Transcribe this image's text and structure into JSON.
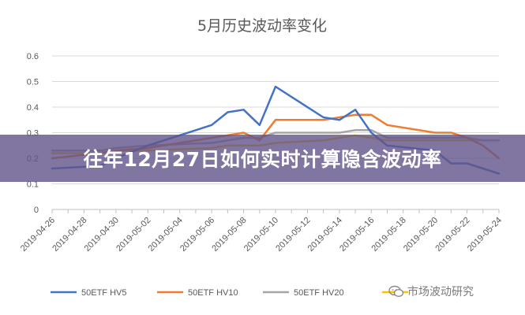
{
  "banner": {
    "text": "往年12月27日如何实时计算隐含波动率"
  },
  "watermark": {
    "text": "市场波动研究"
  },
  "chart_data": {
    "type": "line",
    "title": "5月历史波动率变化",
    "xlabel": "",
    "ylabel": "",
    "ylim": [
      0,
      0.6
    ],
    "yticks": [
      "0",
      "0.1",
      "0.2",
      "0.3",
      "0.4",
      "0.5",
      "0.6"
    ],
    "grid": true,
    "legend_position": "bottom",
    "x": [
      "2019-04-26",
      "2019-04-29",
      "2019-04-30",
      "2019-05-02",
      "2019-05-06",
      "2019-05-07",
      "2019-05-08",
      "2019-05-09",
      "2019-05-10",
      "2019-05-13",
      "2019-05-14",
      "2019-05-15",
      "2019-05-16",
      "2019-05-17",
      "2019-05-20",
      "2019-05-21",
      "2019-05-22",
      "2019-05-23",
      "2019-05-24"
    ],
    "x_tick_labels": [
      "2019-04-26",
      "2019-04-28",
      "2019-04-30",
      "2019-05-02",
      "2019-05-04",
      "2019-05-06",
      "2019-05-08",
      "2019-05-10",
      "2019-05-12",
      "2019-05-14",
      "2019-05-16",
      "2019-05-18",
      "2019-05-20",
      "2019-05-22",
      "2019-05-24"
    ],
    "series": [
      {
        "name": "50ETF HV5",
        "color": "#4472c4",
        "values": [
          0.16,
          0.17,
          0.2,
          0.25,
          0.33,
          0.38,
          0.39,
          0.33,
          0.48,
          0.36,
          0.35,
          0.39,
          0.3,
          0.25,
          0.23,
          0.18,
          0.18,
          0.16,
          0.14
        ]
      },
      {
        "name": "50ETF HV10",
        "color": "#ed7d31",
        "values": [
          0.2,
          0.22,
          0.23,
          0.24,
          0.28,
          0.29,
          0.3,
          0.27,
          0.35,
          0.35,
          0.36,
          0.37,
          0.37,
          0.33,
          0.3,
          0.3,
          0.28,
          0.25,
          0.2
        ]
      },
      {
        "name": "50ETF HV20",
        "color": "#a5a5a5",
        "values": [
          0.23,
          0.23,
          0.24,
          0.25,
          0.26,
          0.27,
          0.28,
          0.28,
          0.3,
          0.3,
          0.3,
          0.31,
          0.31,
          0.28,
          0.28,
          0.28,
          0.28,
          0.27,
          0.27
        ]
      },
      {
        "name": "",
        "color": "#ffc000",
        "values": [
          0.22,
          0.22,
          0.23,
          0.23,
          0.24,
          0.25,
          0.25,
          0.25,
          0.26,
          0.27,
          0.28,
          0.29,
          0.28,
          0.27,
          0.27,
          0.27,
          0.27,
          0.27,
          0.27
        ]
      }
    ]
  }
}
